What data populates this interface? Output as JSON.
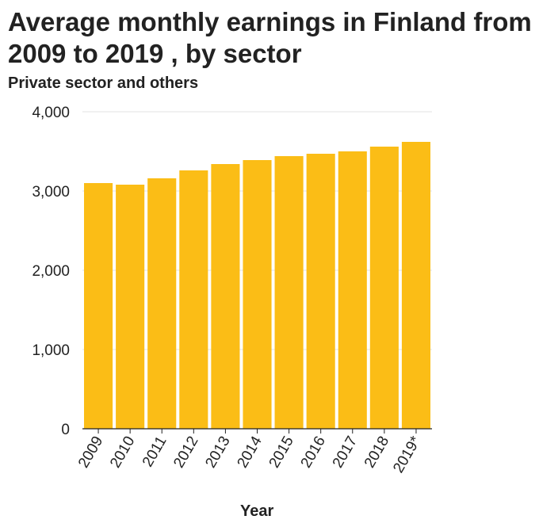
{
  "chart_data": {
    "type": "bar",
    "title": "Average monthly earnings in Finland from 2009 to 2019 , by sector",
    "ylabel": "Private sector and others",
    "xlabel": "Year",
    "categories": [
      "2009",
      "2010",
      "2011",
      "2012",
      "2013",
      "2014",
      "2015",
      "2016",
      "2017",
      "2018",
      "2019*"
    ],
    "values": [
      3100,
      3080,
      3160,
      3260,
      3340,
      3390,
      3440,
      3470,
      3500,
      3560,
      3620
    ],
    "ylim": [
      0,
      4000
    ],
    "yticks": [
      0,
      1000,
      2000,
      3000,
      4000
    ],
    "ytick_labels": [
      "0",
      "1,000",
      "2,000",
      "3,000",
      "4,000"
    ],
    "grid": true,
    "bar_color": "#fbbd16",
    "grid_color": "#e3e3e3"
  }
}
